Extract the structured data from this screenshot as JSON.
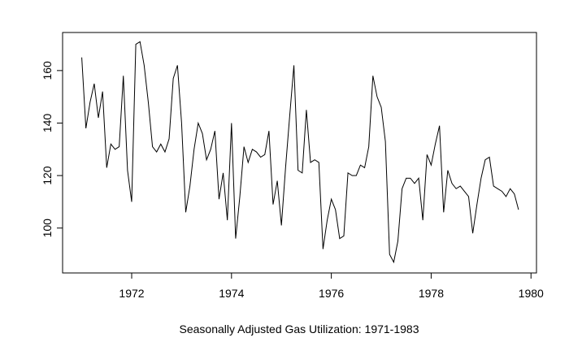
{
  "chart_data": {
    "type": "line",
    "x_label": "Seasonally Adjusted Gas Utilization: 1971-1983",
    "x": [
      1971,
      1971.083,
      1971.167,
      1971.25,
      1971.333,
      1971.417,
      1971.5,
      1971.583,
      1971.667,
      1971.75,
      1971.833,
      1971.917,
      1972,
      1972.083,
      1972.167,
      1972.25,
      1972.333,
      1972.417,
      1972.5,
      1972.583,
      1972.667,
      1972.75,
      1972.833,
      1972.917,
      1973,
      1973.083,
      1973.167,
      1973.25,
      1973.333,
      1973.417,
      1973.5,
      1973.583,
      1973.667,
      1973.75,
      1973.833,
      1973.917,
      1974,
      1974.083,
      1974.167,
      1974.25,
      1974.333,
      1974.417,
      1974.5,
      1974.583,
      1974.667,
      1974.75,
      1974.833,
      1974.917,
      1975,
      1975.083,
      1975.167,
      1975.25,
      1975.333,
      1975.417,
      1975.5,
      1975.583,
      1975.667,
      1975.75,
      1975.833,
      1975.917,
      1976,
      1976.083,
      1976.167,
      1976.25,
      1976.333,
      1976.417,
      1976.5,
      1976.583,
      1976.667,
      1976.75,
      1976.833,
      1976.917,
      1977,
      1977.083,
      1977.167,
      1977.25,
      1977.333,
      1977.417,
      1977.5,
      1977.583,
      1977.667,
      1977.75,
      1977.833,
      1977.917,
      1978,
      1978.083,
      1978.167,
      1978.25,
      1978.333,
      1978.417,
      1978.5,
      1978.583,
      1978.667,
      1978.75,
      1978.833,
      1978.917,
      1979,
      1979.083,
      1979.167,
      1979.25,
      1979.333,
      1979.417,
      1979.5,
      1979.583,
      1979.667,
      1979.75
    ],
    "series": [
      {
        "color": "#000000",
        "values": [
          165,
          138,
          148,
          155,
          142,
          152,
          123,
          132,
          130,
          131,
          158,
          122,
          110,
          170,
          171,
          162,
          148,
          131,
          129,
          132,
          129,
          134,
          157,
          162,
          140,
          106,
          116,
          130,
          140,
          136,
          126,
          130,
          137,
          111,
          121,
          103,
          140,
          96,
          112,
          131,
          125,
          130,
          129,
          127,
          128,
          137,
          109,
          118,
          101,
          123,
          143,
          162,
          122,
          121,
          145,
          125,
          126,
          125,
          92,
          103,
          111,
          107,
          96,
          97,
          121,
          120,
          120,
          124,
          123,
          131,
          158,
          150,
          146,
          133,
          90,
          87,
          95,
          115,
          119,
          119,
          117,
          119,
          103,
          128,
          124,
          132,
          139,
          106,
          122,
          117,
          115,
          116,
          114,
          112,
          98,
          109,
          119,
          126,
          127,
          116,
          115,
          114,
          112,
          115,
          113,
          107
        ]
      }
    ],
    "xlim": [
      1970.616,
      1980.11
    ],
    "ylim": [
      82.9,
      174.5
    ],
    "xticks": [
      1972,
      1974,
      1976,
      1978,
      1980
    ],
    "yticks": [
      100,
      120,
      140,
      160
    ]
  }
}
